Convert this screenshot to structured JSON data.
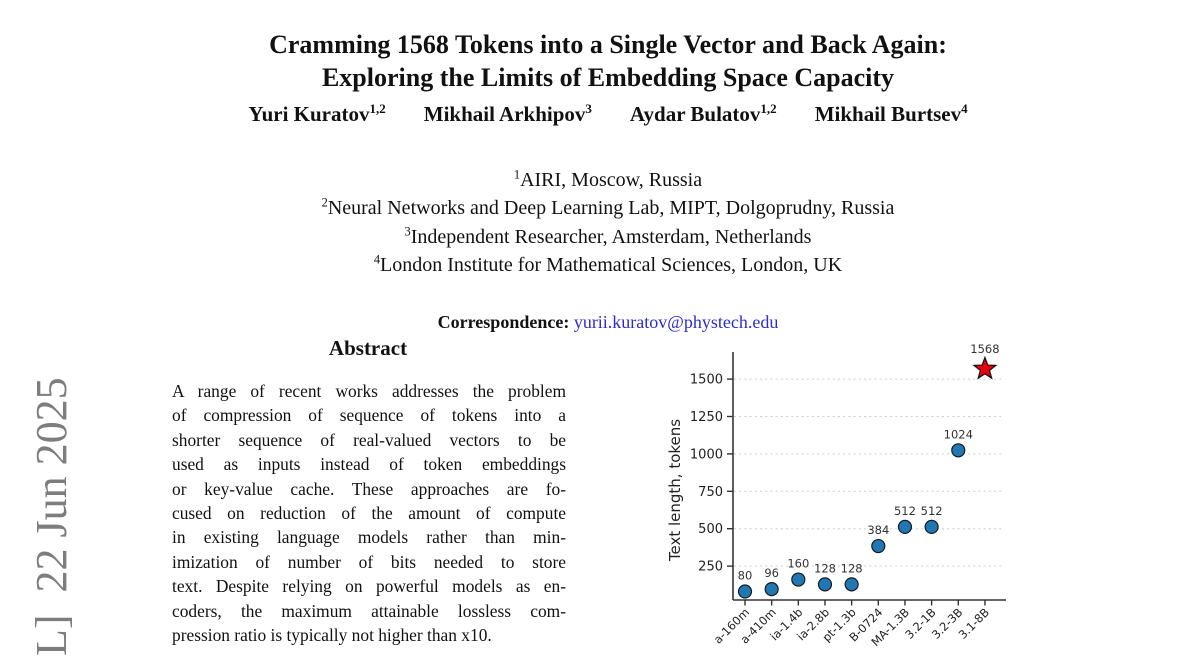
{
  "watermark": {
    "text": "L]  22 Jun 2025"
  },
  "header": {
    "title_line1": "Cramming 1568 Tokens into a Single Vector and Back Again:",
    "title_line2": "Exploring the Limits of Embedding Space Capacity",
    "authors": [
      {
        "name": "Yuri Kuratov",
        "sup": "1,2"
      },
      {
        "name": "Mikhail Arkhipov",
        "sup": "3"
      },
      {
        "name": "Aydar Bulatov",
        "sup": "1,2"
      },
      {
        "name": "Mikhail Burtsev",
        "sup": "4"
      }
    ],
    "affiliations": [
      {
        "sup": "1",
        "text": "AIRI, Moscow, Russia"
      },
      {
        "sup": "2",
        "text": "Neural Networks and Deep Learning Lab, MIPT, Dolgoprudny, Russia"
      },
      {
        "sup": "3",
        "text": "Independent Researcher, Amsterdam, Netherlands"
      },
      {
        "sup": "4",
        "text": "London Institute for Mathematical Sciences, London, UK"
      }
    ],
    "correspondence_label": "Correspondence:",
    "correspondence_email": "yurii.kuratov@phystech.edu",
    "email_color": "#2b2bd0"
  },
  "abstract": {
    "heading": "Abstract",
    "lines": [
      "A range of recent works addresses the problem",
      "of compression of sequence of tokens into a",
      "shorter sequence of real-valued vectors to be",
      "used as inputs instead of token embeddings",
      "or key-value cache. These approaches are fo-",
      "cused on reduction of the amount of compute",
      "in existing language models rather than min-",
      "imization of number of bits needed to store",
      "text. Despite relying on powerful models as en-",
      "coders, the maximum attainable lossless com-",
      "pression ratio is typically not higher than x10."
    ]
  },
  "chart_data": {
    "type": "scatter",
    "title": "",
    "xlabel": "",
    "ylabel": "Text length, tokens",
    "ylim": [
      0,
      1700
    ],
    "yticks": [
      250,
      500,
      750,
      1000,
      1250,
      1500
    ],
    "grid": "horizontal-dashed",
    "legend": "none",
    "categories": [
      "a-160m",
      "a-410m",
      "ia-1.4b",
      "ia-2.8b",
      "pt-1.3b",
      "B-0724",
      "MA-1.3B",
      "3.2-1B",
      "3.2-3B",
      "3.1-8B"
    ],
    "values": [
      80,
      96,
      160,
      128,
      128,
      384,
      512,
      512,
      1024,
      1568
    ],
    "highlight_index": 9,
    "highlight_marker": "star",
    "colors": {
      "point": "#1f77b4",
      "point_edge": "#1a1a1a",
      "star": "#e8000b",
      "grid": "#cdcdcd",
      "axis": "#333333",
      "tick_text": "#222222",
      "value_text": "#333333"
    }
  }
}
